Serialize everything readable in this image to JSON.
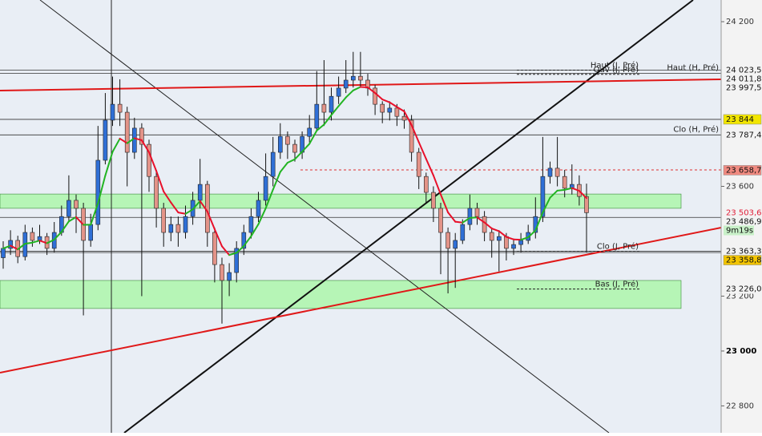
{
  "chart_data": {
    "type": "candlestick",
    "up_color": "#2f6fd6",
    "down_color": "#e39388",
    "ylim": [
      22702,
      24279
    ],
    "yticks": [
      {
        "value": 24200,
        "label": "24 200"
      },
      {
        "value": 23600,
        "label": "23 600"
      },
      {
        "value": 23200,
        "label": "23 200"
      },
      {
        "value": 23000,
        "label": "23 000",
        "bold": true
      },
      {
        "value": 22800,
        "label": "22 800"
      }
    ],
    "open": [
      23340,
      23374,
      23403,
      23344,
      23432,
      23403,
      23417,
      23374,
      23432,
      23490,
      23549,
      23520,
      23403,
      23461,
      23695,
      23841,
      23899,
      23870,
      23724,
      23812,
      23753,
      23636,
      23520,
      23432,
      23461,
      23432,
      23490,
      23549,
      23607,
      23432,
      23315,
      23257,
      23286,
      23374,
      23432,
      23490,
      23549,
      23636,
      23724,
      23782,
      23753,
      23724,
      23782,
      23812,
      23899,
      23870,
      23928,
      23958,
      23987,
      24001,
      23987,
      23958,
      23899,
      23870,
      23885,
      23855,
      23841,
      23724,
      23636,
      23578,
      23520,
      23432,
      23374,
      23403,
      23461,
      23520,
      23490,
      23432,
      23403,
      23417,
      23374,
      23388,
      23403,
      23432,
      23490,
      23636,
      23666,
      23636,
      23593,
      23607,
      23563
    ],
    "high": [
      23400,
      23440,
      23420,
      23460,
      23450,
      23460,
      23430,
      23470,
      23530,
      23640,
      23570,
      23540,
      23500,
      23820,
      23940,
      24000,
      23990,
      23890,
      23850,
      23830,
      23770,
      23660,
      23540,
      23490,
      23490,
      23530,
      23580,
      23700,
      23620,
      23450,
      23340,
      23320,
      23400,
      23460,
      23520,
      23580,
      23720,
      23780,
      23830,
      23800,
      23770,
      23800,
      23860,
      24020,
      24060,
      23960,
      24000,
      24060,
      24090,
      24090,
      24010,
      23970,
      23910,
      23910,
      23900,
      23880,
      23860,
      23740,
      23650,
      23600,
      23540,
      23450,
      23430,
      23480,
      23570,
      23540,
      23510,
      23450,
      23440,
      23430,
      23410,
      23430,
      23460,
      23560,
      23780,
      23690,
      23780,
      23660,
      23680,
      23640,
      23610
    ],
    "low": [
      23300,
      23350,
      23320,
      23330,
      23380,
      23390,
      23350,
      23360,
      23420,
      23470,
      23430,
      23130,
      23380,
      23440,
      23680,
      23820,
      23820,
      23600,
      23700,
      23200,
      23580,
      23450,
      23380,
      23400,
      23380,
      23410,
      23460,
      23520,
      23380,
      23250,
      23100,
      23200,
      23250,
      23350,
      23410,
      23470,
      23530,
      23600,
      23700,
      23700,
      23690,
      23700,
      23760,
      23800,
      23820,
      23840,
      23900,
      23940,
      23960,
      23960,
      23930,
      23860,
      23830,
      23840,
      23820,
      23810,
      23690,
      23590,
      23540,
      23470,
      23280,
      23210,
      23230,
      23390,
      23440,
      23460,
      23400,
      23340,
      23290,
      23330,
      23350,
      23360,
      23390,
      23410,
      23470,
      23610,
      23600,
      23560,
      23570,
      23530,
      23360
    ],
    "close": [
      23374,
      23403,
      23344,
      23432,
      23403,
      23417,
      23374,
      23432,
      23490,
      23549,
      23520,
      23403,
      23461,
      23695,
      23841,
      23899,
      23870,
      23724,
      23812,
      23753,
      23636,
      23520,
      23432,
      23461,
      23432,
      23490,
      23549,
      23607,
      23432,
      23315,
      23257,
      23286,
      23374,
      23432,
      23490,
      23549,
      23636,
      23724,
      23782,
      23753,
      23724,
      23782,
      23812,
      23899,
      23870,
      23928,
      23958,
      23987,
      24001,
      23987,
      23958,
      23899,
      23870,
      23885,
      23855,
      23841,
      23724,
      23636,
      23578,
      23520,
      23432,
      23374,
      23403,
      23461,
      23520,
      23490,
      23432,
      23403,
      23417,
      23374,
      23388,
      23403,
      23432,
      23490,
      23636,
      23666,
      23636,
      23593,
      23607,
      23563,
      23504
    ],
    "zones": [
      [
        23520,
        23572
      ],
      [
        23155,
        23257
      ]
    ],
    "levels": [
      {
        "value": 24023.5,
        "label": "24 023,5",
        "line": true
      },
      {
        "value": 24011.8,
        "label": "24 011,8",
        "line": true
      },
      {
        "value": 23997.5,
        "label": "23 997,5"
      },
      {
        "value": 23844,
        "label": "23 844",
        "background": "#f2e600",
        "line": true
      },
      {
        "value": 23787.4,
        "label": "23 787,4",
        "line": true
      },
      {
        "value": 23658.7,
        "label": "23 658,7",
        "background": "#f08a80"
      },
      {
        "value": 23503.6,
        "label": "23 503,6",
        "text_color": "#e0203a"
      },
      {
        "value": 23486.9,
        "label": "23 486,9",
        "line": true
      },
      {
        "value": 23363.3,
        "label": "23 363,3",
        "line": true
      },
      {
        "value": 23358.8,
        "label": "23 358,8",
        "background": "#f2c400",
        "line": true
      },
      {
        "value": 23226.0,
        "label": "23 226,0"
      }
    ],
    "timer": "9m19s",
    "annotations": [
      {
        "text": "Haut (J, Pré)",
        "value": 24023.5,
        "placement": "inner"
      },
      {
        "text": "Ouv (J, Pré)",
        "value": 24008,
        "placement": "inner"
      },
      {
        "text": "Haut (H, Pré)",
        "value": 24011.8,
        "placement": "outer"
      },
      {
        "text": "Clo (H, Pré)",
        "value": 23787.4,
        "placement": "outer"
      },
      {
        "text": "Clo (J, Pré)",
        "value": 23363.3,
        "placement": "inner"
      },
      {
        "text": "Bas (J, Pré)",
        "value": 23226.0,
        "placement": "inner"
      }
    ]
  }
}
